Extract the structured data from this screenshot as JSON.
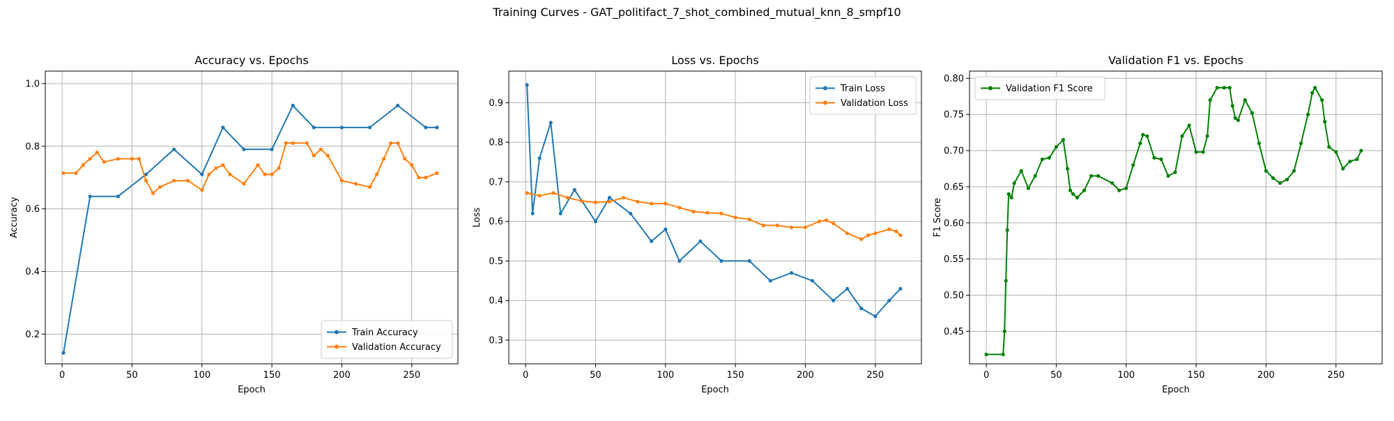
{
  "figure": {
    "title": "Training Curves - GAT_politifact_7_shot_combined_mutual_knn_8_smpf10"
  },
  "colors": {
    "train": "#1f77b4",
    "validation": "#ff7f0e",
    "f1": "#008000",
    "grid": "#b0b0b0"
  },
  "chart_data": [
    {
      "type": "line",
      "title": "Accuracy vs. Epochs",
      "xlabel": "Epoch",
      "ylabel": "Accuracy",
      "xlim": [
        -12,
        283
      ],
      "ylim": [
        0.105,
        1.04
      ],
      "xticks": [
        0,
        50,
        100,
        150,
        200,
        250
      ],
      "yticks": [
        0.2,
        0.4,
        0.6,
        0.8,
        1.0
      ],
      "ytick_labels": [
        "0.2",
        "0.4",
        "0.6",
        "0.8",
        "1.0"
      ],
      "grid": true,
      "legend_position": "lower-right",
      "series": [
        {
          "name": "Train Accuracy",
          "color": "#1f77b4",
          "x": [
            1,
            20,
            40,
            60,
            80,
            100,
            115,
            130,
            150,
            165,
            180,
            200,
            220,
            240,
            260,
            268
          ],
          "values": [
            0.14,
            0.64,
            0.64,
            0.71,
            0.79,
            0.71,
            0.86,
            0.79,
            0.79,
            0.93,
            0.86,
            0.86,
            0.86,
            0.93,
            0.86,
            0.86
          ]
        },
        {
          "name": "Validation Accuracy",
          "color": "#ff7f0e",
          "x": [
            1,
            10,
            15,
            20,
            25,
            30,
            40,
            50,
            55,
            60,
            65,
            70,
            80,
            90,
            100,
            105,
            110,
            115,
            120,
            130,
            140,
            145,
            150,
            155,
            160,
            165,
            175,
            180,
            185,
            190,
            200,
            210,
            220,
            225,
            230,
            235,
            240,
            245,
            250,
            255,
            260,
            268
          ],
          "values": [
            0.714,
            0.714,
            0.74,
            0.76,
            0.78,
            0.75,
            0.76,
            0.76,
            0.76,
            0.69,
            0.65,
            0.67,
            0.69,
            0.69,
            0.66,
            0.71,
            0.73,
            0.74,
            0.71,
            0.68,
            0.74,
            0.71,
            0.71,
            0.73,
            0.81,
            0.81,
            0.81,
            0.77,
            0.79,
            0.77,
            0.69,
            0.68,
            0.67,
            0.71,
            0.76,
            0.81,
            0.81,
            0.76,
            0.74,
            0.7,
            0.7,
            0.714
          ]
        }
      ]
    },
    {
      "type": "line",
      "title": "Loss vs. Epochs",
      "xlabel": "Epoch",
      "ylabel": "Loss",
      "xlim": [
        -12,
        283
      ],
      "ylim": [
        0.24,
        0.98
      ],
      "xticks": [
        0,
        50,
        100,
        150,
        200,
        250
      ],
      "yticks": [
        0.3,
        0.4,
        0.5,
        0.6,
        0.7,
        0.8,
        0.9
      ],
      "ytick_labels": [
        "0.3",
        "0.4",
        "0.5",
        "0.6",
        "0.7",
        "0.8",
        "0.9"
      ],
      "grid": true,
      "legend_position": "upper-right",
      "series": [
        {
          "name": "Train Loss",
          "color": "#1f77b4",
          "x": [
            1,
            5,
            10,
            18,
            25,
            35,
            50,
            60,
            75,
            90,
            100,
            110,
            125,
            140,
            160,
            175,
            190,
            205,
            220,
            230,
            240,
            250,
            260,
            268
          ],
          "values": [
            0.945,
            0.62,
            0.76,
            0.85,
            0.62,
            0.68,
            0.6,
            0.66,
            0.62,
            0.55,
            0.58,
            0.5,
            0.55,
            0.5,
            0.5,
            0.45,
            0.47,
            0.45,
            0.4,
            0.43,
            0.38,
            0.36,
            0.4,
            0.43
          ]
        },
        {
          "name": "Validation Loss",
          "color": "#ff7f0e",
          "x": [
            1,
            10,
            20,
            30,
            40,
            50,
            60,
            70,
            80,
            90,
            100,
            110,
            120,
            130,
            140,
            150,
            160,
            170,
            180,
            190,
            200,
            210,
            215,
            220,
            230,
            240,
            245,
            250,
            260,
            265,
            268
          ],
          "values": [
            0.672,
            0.665,
            0.672,
            0.66,
            0.652,
            0.648,
            0.65,
            0.66,
            0.65,
            0.645,
            0.645,
            0.635,
            0.625,
            0.622,
            0.62,
            0.61,
            0.605,
            0.59,
            0.59,
            0.585,
            0.585,
            0.6,
            0.603,
            0.595,
            0.57,
            0.555,
            0.565,
            0.57,
            0.58,
            0.575,
            0.565
          ]
        }
      ]
    },
    {
      "type": "line",
      "title": "Validation F1 vs. Epochs",
      "xlabel": "Epoch",
      "ylabel": "F1 Score",
      "xlim": [
        -12,
        283
      ],
      "ylim": [
        0.405,
        0.81
      ],
      "xticks": [
        0,
        50,
        100,
        150,
        200,
        250
      ],
      "yticks": [
        0.4,
        0.45,
        0.5,
        0.55,
        0.6,
        0.65,
        0.7,
        0.75,
        0.8
      ],
      "ytick_labels": [
        "0.40",
        "0.45",
        "0.50",
        "0.55",
        "0.60",
        "0.65",
        "0.70",
        "0.75",
        "0.80"
      ],
      "grid": true,
      "legend_position": "upper-left",
      "series": [
        {
          "name": "Validation F1 Score",
          "color": "#008000",
          "x": [
            0,
            12,
            13,
            14,
            15,
            16,
            18,
            20,
            25,
            30,
            35,
            40,
            45,
            50,
            55,
            58,
            60,
            62,
            65,
            70,
            75,
            80,
            90,
            95,
            100,
            105,
            110,
            112,
            115,
            120,
            125,
            130,
            135,
            140,
            145,
            150,
            155,
            158,
            160,
            165,
            170,
            174,
            176,
            178,
            180,
            185,
            190,
            195,
            200,
            205,
            210,
            215,
            220,
            225,
            230,
            233,
            235,
            240,
            242,
            245,
            250,
            255,
            260,
            265,
            268
          ],
          "values": [
            0.418,
            0.418,
            0.45,
            0.52,
            0.59,
            0.64,
            0.635,
            0.655,
            0.672,
            0.648,
            0.665,
            0.688,
            0.69,
            0.705,
            0.715,
            0.675,
            0.645,
            0.64,
            0.635,
            0.645,
            0.665,
            0.665,
            0.655,
            0.645,
            0.648,
            0.68,
            0.71,
            0.722,
            0.72,
            0.69,
            0.688,
            0.665,
            0.67,
            0.72,
            0.735,
            0.698,
            0.698,
            0.72,
            0.77,
            0.787,
            0.787,
            0.787,
            0.762,
            0.745,
            0.742,
            0.77,
            0.752,
            0.71,
            0.672,
            0.662,
            0.655,
            0.66,
            0.672,
            0.71,
            0.75,
            0.78,
            0.787,
            0.77,
            0.74,
            0.705,
            0.698,
            0.675,
            0.685,
            0.688,
            0.7
          ]
        }
      ]
    }
  ]
}
